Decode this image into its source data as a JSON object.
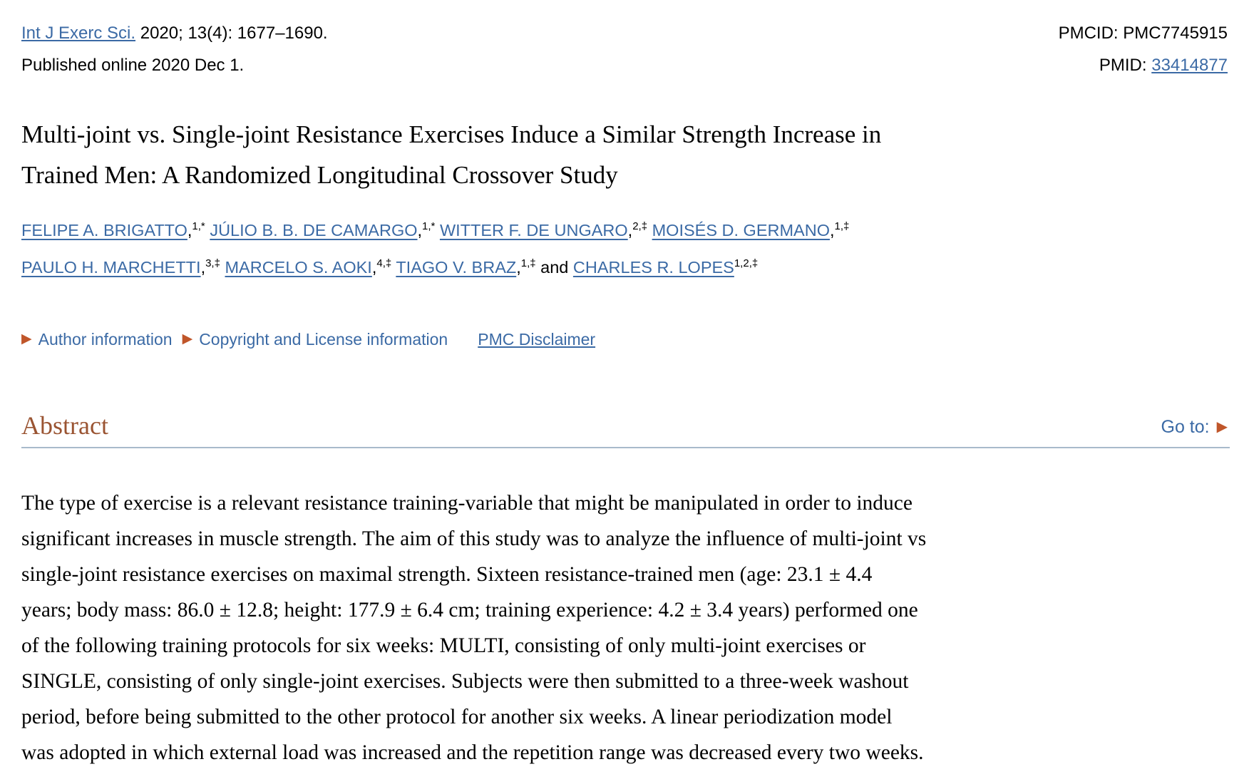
{
  "header": {
    "journal_link": "Int J Exerc Sci.",
    "citation_rest": " 2020; 13(4): 1677–1690.",
    "published": "Published online 2020 Dec 1.",
    "pmcid_label": "PMCID: ",
    "pmcid_value": "PMC7745915",
    "pmid_label": "PMID: ",
    "pmid_value": "33414877"
  },
  "title": "Multi-joint vs. Single-joint Resistance Exercises Induce a Similar Strength Increase in\nTrained Men: A Randomized Longitudinal Crossover Study",
  "authors": {
    "line1": [
      {
        "name": "FELIPE A. BRIGATTO",
        "comma": true,
        "sup": "1,*"
      },
      {
        "name": "JÚLIO B. B. DE CAMARGO",
        "comma": true,
        "sup": "1,*"
      },
      {
        "name": "WITTER F. DE UNGARO",
        "comma": true,
        "sup": "2,‡"
      },
      {
        "name": "MOISÉS D. GERMANO",
        "comma": true,
        "sup": "1,‡"
      }
    ],
    "line2": [
      {
        "name": "PAULO H. MARCHETTI",
        "comma": true,
        "sup": "3,‡"
      },
      {
        "name": "MARCELO S. AOKI",
        "comma": true,
        "sup": "4,‡"
      },
      {
        "name": "TIAGO V. BRAZ",
        "comma": true,
        "sup": "1,‡"
      },
      {
        "prefix": "and ",
        "name": "CHARLES R. LOPES",
        "comma": false,
        "sup": "1,2,‡"
      }
    ]
  },
  "info_row": {
    "author_information": "Author information",
    "copyright": "Copyright and License information",
    "disclaimer": "PMC Disclaimer",
    "bullet_icon": "▶"
  },
  "abstract": {
    "heading": "Abstract",
    "goto_label": "Go to:",
    "goto_icon": "▶",
    "text": "The type of exercise is a relevant resistance training-variable that might be manipulated in order to induce\nsignificant increases in muscle strength. The aim of this study was to analyze the influence of multi-joint vs\nsingle-joint resistance exercises on maximal strength. Sixteen resistance-trained men (age: 23.1 ± 4.4\nyears; body mass: 86.0 ± 12.8; height: 177.9 ± 6.4 cm; training experience: 4.2 ± 3.4 years) performed one\nof the following training protocols for six weeks: MULTI, consisting of only multi-joint exercises or\nSINGLE, consisting of only single-joint exercises. Subjects were then submitted to a three-week washout\nperiod, before being submitted to the other protocol for another six weeks. A linear periodization model\nwas adopted in which external load was increased and the repetition range was decreased every two weeks."
  },
  "colors": {
    "link_blue": "#3b6aa5",
    "accent_orange": "#c0562a",
    "heading_rust": "#9a5432",
    "rule_gray_blue": "#a8bacb"
  }
}
